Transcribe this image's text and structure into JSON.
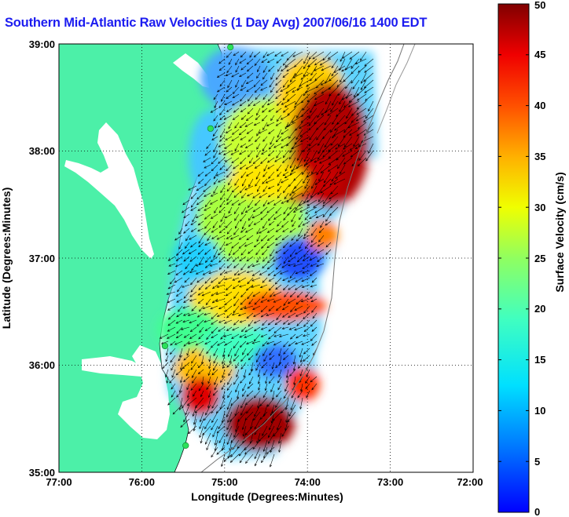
{
  "title": "Southern Mid-Atlantic Raw Velocities (1 Day Avg) 2007/06/16 1400 EDT",
  "xlabel": "Longitude (Degrees:Minutes)",
  "ylabel": "Latitude (Degrees:Minutes)",
  "colorbar_label": "Surface Velocity (cm/s)",
  "x_ticks": [
    "77:00",
    "76:00",
    "75:00",
    "74:00",
    "73:00",
    "72:00"
  ],
  "y_ticks": [
    "35:00",
    "36:00",
    "37:00",
    "38:00",
    "39:00"
  ],
  "colorbar_ticks": [
    "0",
    "5",
    "10",
    "15",
    "20",
    "25",
    "30",
    "35",
    "40",
    "45",
    "50"
  ],
  "colors": {
    "land": "#4cf0a8",
    "title": "#1c1cf0",
    "station": "#2ce05a",
    "grid": "#000000"
  },
  "chart_data": {
    "type": "heatmap",
    "xlim": [
      -77,
      -72
    ],
    "ylim": [
      35,
      39
    ],
    "clim": [
      0,
      50
    ],
    "colormap": "jet",
    "grid": true,
    "stations": [
      {
        "lon": -74.93,
        "lat": 38.97
      },
      {
        "lon": -75.17,
        "lat": 38.21
      },
      {
        "lon": -75.72,
        "lat": 36.18
      },
      {
        "lon": -75.47,
        "lat": 35.25
      }
    ]
  }
}
